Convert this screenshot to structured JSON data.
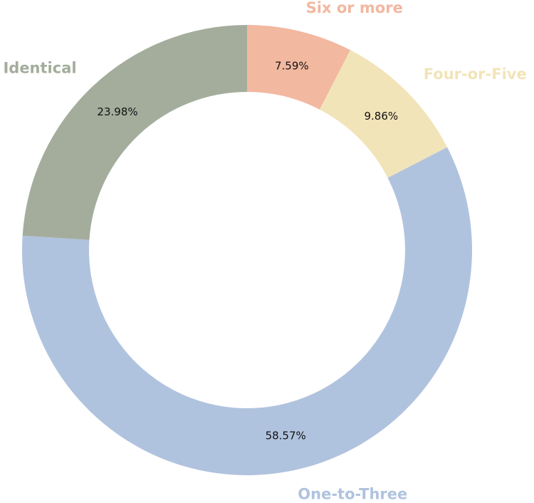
{
  "chart_data": {
    "type": "pie",
    "donut": true,
    "start_angle": "top, clockwise",
    "slices": [
      {
        "label": "Six or more",
        "value": 7.59,
        "value_label": "7.59%",
        "color": "#f2b8a0"
      },
      {
        "label": "Four-or-Five",
        "value": 9.86,
        "value_label": "9.86%",
        "color": "#f2e4b9"
      },
      {
        "label": "One-to-Three",
        "value": 58.57,
        "value_label": "58.57%",
        "color": "#b0c3de"
      },
      {
        "label": "Identical",
        "value": 23.98,
        "value_label": "23.98%",
        "color": "#a4ad9c"
      }
    ]
  }
}
